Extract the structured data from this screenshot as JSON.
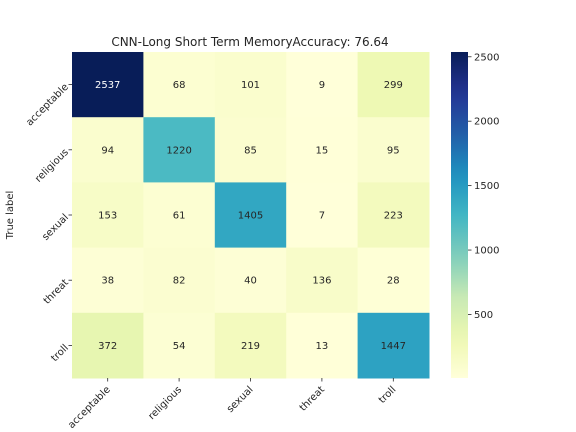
{
  "chart_data": {
    "type": "heatmap",
    "title": "CNN-Long Short Term MemoryAccuracy: 76.64",
    "ylabel": "True label",
    "xlabel": "",
    "row_labels": [
      "acceptable",
      "religious",
      "sexual",
      "threat",
      "troll"
    ],
    "col_labels": [
      "acceptable",
      "religious",
      "sexual",
      "threat",
      "troll"
    ],
    "values": [
      [
        2537,
        68,
        101,
        9,
        299
      ],
      [
        94,
        1220,
        85,
        15,
        95
      ],
      [
        153,
        61,
        1405,
        7,
        223
      ],
      [
        38,
        82,
        40,
        136,
        28
      ],
      [
        372,
        54,
        219,
        13,
        1447
      ]
    ],
    "colormap": "YlGnBu",
    "color_range": [
      7,
      2537
    ],
    "colorbar_ticks": [
      500,
      1000,
      1500,
      2000,
      2500
    ],
    "grid": false
  }
}
